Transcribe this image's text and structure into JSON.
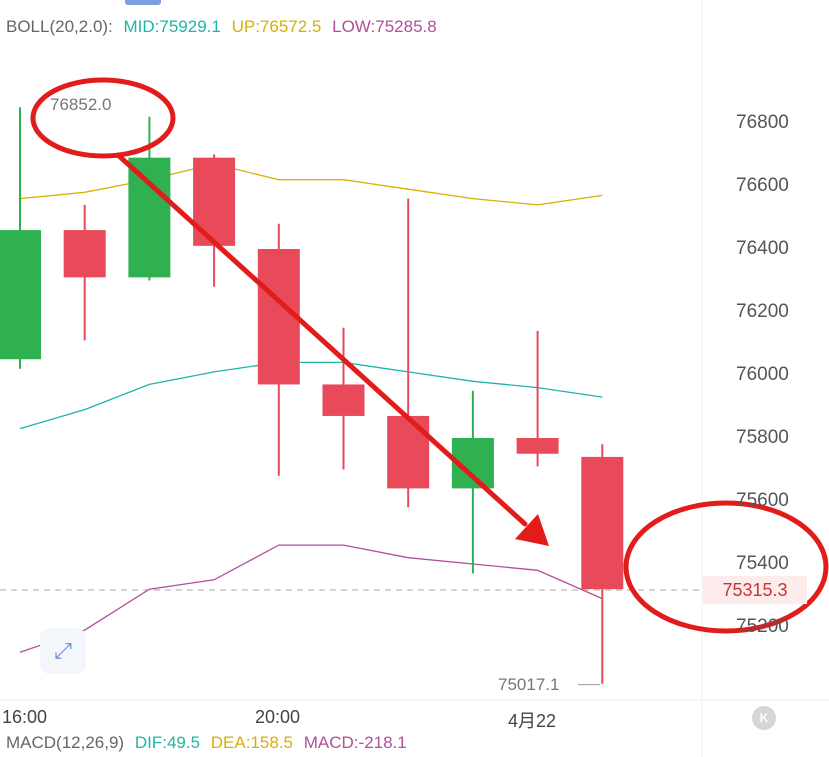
{
  "boll_legend": {
    "label": "BOLL(20,2.0):",
    "mid": "MID:75929.1",
    "up": "UP:76572.5",
    "low": "LOW:75285.8"
  },
  "macd_legend": {
    "label": "MACD(12,26,9)",
    "dif": "DIF:49.5",
    "dea": "DEA:158.5",
    "macd": "MACD:-218.1"
  },
  "current_price": "75315.3",
  "high_label": "76852.0",
  "low_label": "75017.1",
  "icons": {
    "expand": "expand-icon",
    "scroll_end": "scroll-end-icon"
  },
  "chart_data": {
    "type": "candlestick",
    "y_ticks": [
      "76800",
      "76600",
      "76400",
      "76200",
      "76000",
      "75800",
      "75600",
      "75400",
      "75200"
    ],
    "x_ticks": [
      "16:00",
      "20:00",
      "4月22"
    ],
    "ylim": [
      75000,
      76900
    ],
    "candles": [
      {
        "open": 76050,
        "close": 76460,
        "high": 76850,
        "low": 76020
      },
      {
        "open": 76460,
        "close": 76310,
        "high": 76540,
        "low": 76110
      },
      {
        "open": 76310,
        "close": 76690,
        "high": 76820,
        "low": 76300
      },
      {
        "open": 76690,
        "close": 76410,
        "high": 76700,
        "low": 76280
      },
      {
        "open": 76400,
        "close": 75970,
        "high": 76480,
        "low": 75680
      },
      {
        "open": 75970,
        "close": 75870,
        "high": 76150,
        "low": 75700
      },
      {
        "open": 75870,
        "close": 75640,
        "high": 76560,
        "low": 75580
      },
      {
        "open": 75640,
        "close": 75800,
        "high": 75950,
        "low": 75370
      },
      {
        "open": 75800,
        "close": 75750,
        "high": 76140,
        "low": 75710
      },
      {
        "open": 75740,
        "close": 75320,
        "high": 75780,
        "low": 75020
      }
    ],
    "boll_up": [
      76560,
      76580,
      76620,
      76670,
      76620,
      76620,
      76590,
      76560,
      76540,
      76570
    ],
    "boll_mid": [
      75830,
      75890,
      75970,
      76010,
      76040,
      76040,
      76010,
      75980,
      75960,
      75930
    ],
    "boll_low": [
      75120,
      75190,
      75320,
      75350,
      75460,
      75460,
      75420,
      75400,
      75380,
      75290
    ],
    "colors": {
      "up_candle": "#2fb152",
      "down_candle": "#e84a5a",
      "boll_up": "#d9b000",
      "boll_mid": "#1fb5a6",
      "boll_low": "#b0509a",
      "annotation": "#e21b1b"
    }
  }
}
